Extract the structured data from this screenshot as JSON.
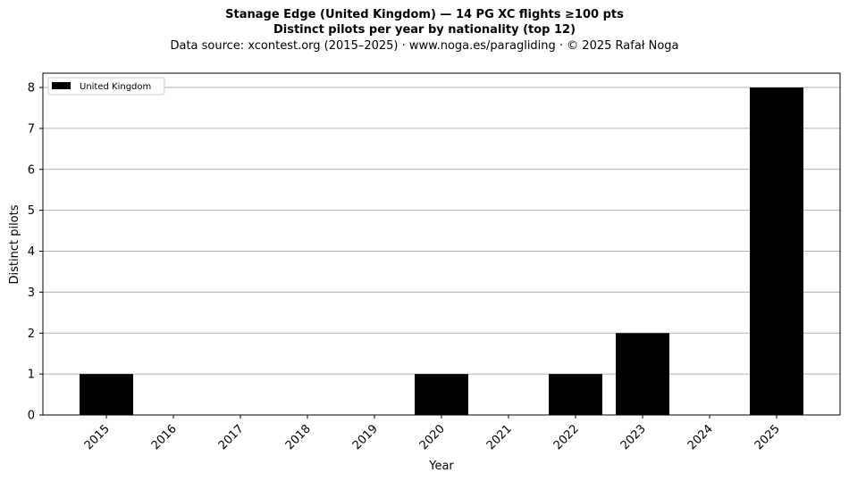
{
  "chart_data": {
    "type": "bar",
    "title": "Stanage Edge (United Kingdom)  —  14 PG XC flights ≥100 pts",
    "subtitle": "Distinct pilots per year by nationality (top 12)",
    "source": "Data source: xcontest.org (2015–2025)  ·  www.noga.es/paragliding  ·  © 2025 Rafał Noga",
    "xlabel": "Year",
    "ylabel": "Distinct pilots",
    "categories": [
      "2015",
      "2016",
      "2017",
      "2018",
      "2019",
      "2020",
      "2021",
      "2022",
      "2023",
      "2024",
      "2025"
    ],
    "series": [
      {
        "name": "United Kingdom",
        "color": "#000000",
        "values": [
          1,
          0,
          0,
          0,
          0,
          1,
          0,
          1,
          2,
          0,
          8
        ]
      }
    ],
    "ylim": [
      0,
      8.35
    ],
    "yticks": [
      0,
      1,
      2,
      3,
      4,
      5,
      6,
      7,
      8
    ],
    "grid": "y",
    "legend": "top-left"
  }
}
